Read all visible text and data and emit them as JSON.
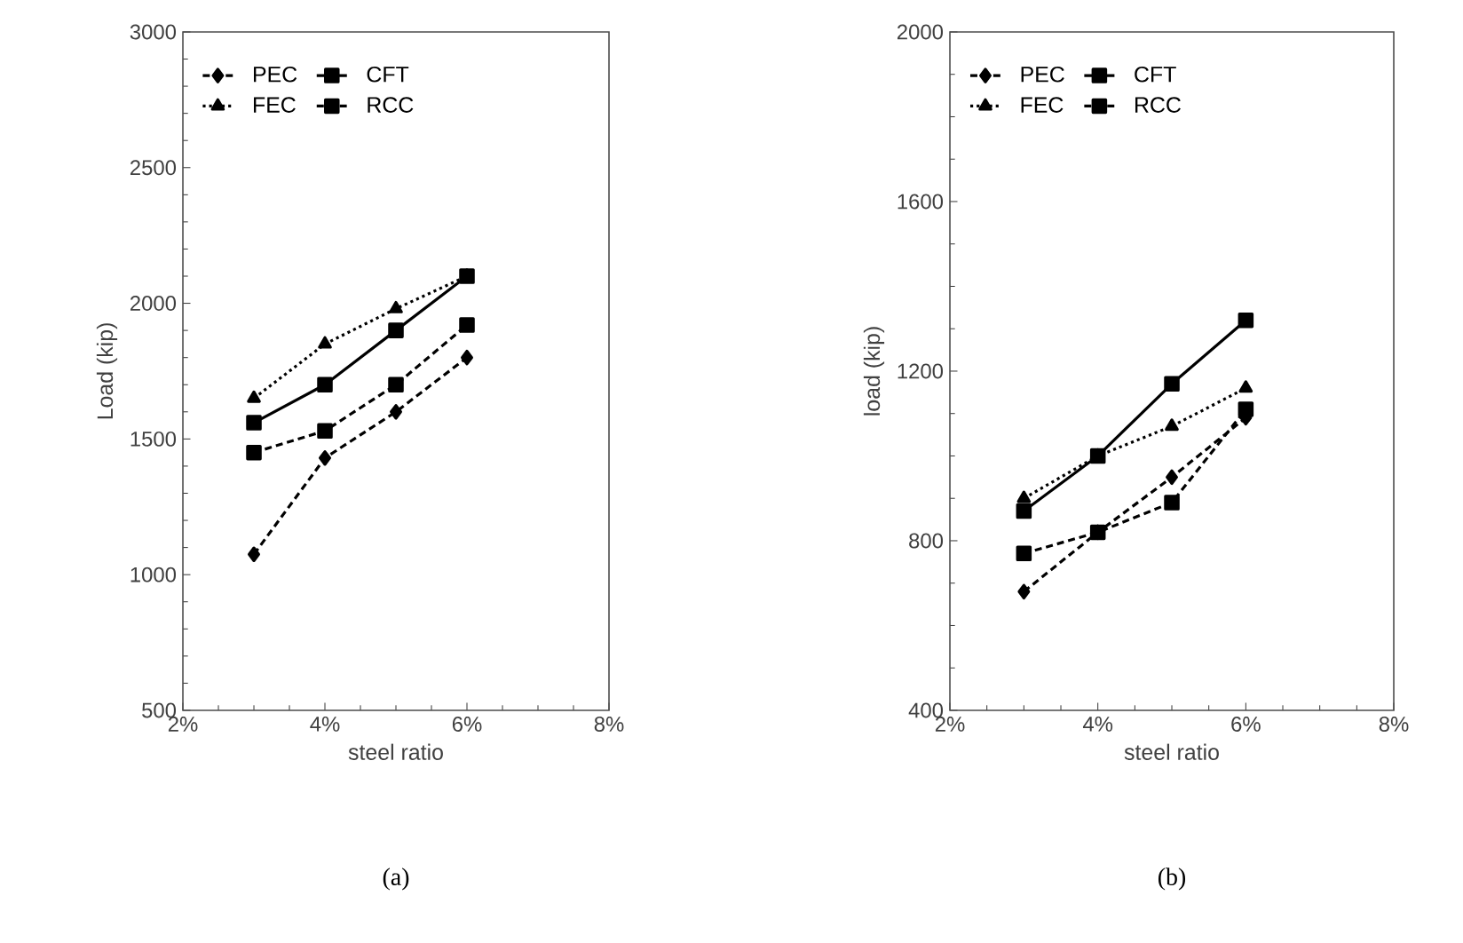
{
  "chart_data": [
    {
      "type": "line",
      "xlabel": "steel ratio",
      "ylabel": "Load (kip)",
      "x": [
        3,
        4,
        5,
        6
      ],
      "xlim": [
        2,
        8
      ],
      "xticks": [
        {
          "value": 2,
          "label": "2%"
        },
        {
          "value": 4,
          "label": "4%"
        },
        {
          "value": 6,
          "label": "6%"
        },
        {
          "value": 8,
          "label": "8%"
        }
      ],
      "ylim": [
        500,
        3000
      ],
      "yticks": [
        500,
        1000,
        1500,
        2000,
        2500,
        3000
      ],
      "legend": "top left",
      "grid": false,
      "series": [
        {
          "name": "PEC",
          "color": "#000000",
          "marker": "diamond",
          "line_style": "dashed",
          "values": [
            1075,
            1430,
            1600,
            1800
          ]
        },
        {
          "name": "CFT",
          "color": "#000000",
          "marker": "square",
          "line_style": "solid",
          "values": [
            1560,
            1700,
            1900,
            2100
          ]
        },
        {
          "name": "FEC",
          "color": "#000000",
          "marker": "triangle",
          "line_style": "dotted",
          "values": [
            1650,
            1850,
            1980,
            2100
          ]
        },
        {
          "name": "RCC",
          "color": "#000000",
          "marker": "square",
          "line_style": "dashed",
          "values": [
            1450,
            1530,
            1700,
            1920
          ]
        }
      ],
      "annotations": [
        "(a)"
      ]
    },
    {
      "type": "line",
      "xlabel": "steel ratio",
      "ylabel": "load (kip)",
      "x": [
        3,
        4,
        5,
        6
      ],
      "xlim": [
        2,
        8
      ],
      "xticks": [
        {
          "value": 2,
          "label": "2%"
        },
        {
          "value": 4,
          "label": "4%"
        },
        {
          "value": 6,
          "label": "6%"
        },
        {
          "value": 8,
          "label": "8%"
        }
      ],
      "ylim": [
        400,
        2000
      ],
      "yticks": [
        400,
        800,
        1200,
        1600,
        2000
      ],
      "legend": "top left",
      "grid": false,
      "series": [
        {
          "name": "PEC",
          "color": "#000000",
          "marker": "diamond",
          "line_style": "dashed",
          "values": [
            680,
            820,
            950,
            1090
          ]
        },
        {
          "name": "CFT",
          "color": "#000000",
          "marker": "square",
          "line_style": "solid",
          "values": [
            870,
            1000,
            1170,
            1320
          ]
        },
        {
          "name": "FEC",
          "color": "#000000",
          "marker": "triangle",
          "line_style": "dotted",
          "values": [
            900,
            1000,
            1070,
            1160
          ]
        },
        {
          "name": "RCC",
          "color": "#000000",
          "marker": "square",
          "line_style": "dashed",
          "values": [
            770,
            820,
            890,
            1110
          ]
        }
      ],
      "annotations": [
        "(b)"
      ]
    }
  ]
}
